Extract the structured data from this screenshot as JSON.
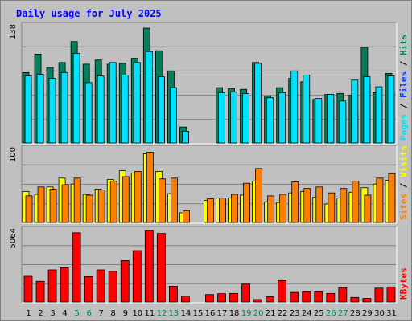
{
  "title": "Daily usage for July 2025",
  "colors": {
    "background": "#c0c0c0",
    "hits": "#00805c",
    "files": "#0040ff",
    "pages": "#00e0ff",
    "visits": "#ffff00",
    "sites": "#ff8000",
    "kbytes": "#ff0000",
    "title": "#0000ff",
    "weekend_label": "#00805c",
    "weekday_label": "#000000"
  },
  "chart_data": [
    {
      "type": "bar",
      "name": "hits-files-pages",
      "categories": [
        "1",
        "2",
        "3",
        "4",
        "5",
        "6",
        "7",
        "8",
        "9",
        "10",
        "11",
        "12",
        "13",
        "14",
        "15",
        "16",
        "17",
        "18",
        "19",
        "20",
        "21",
        "22",
        "23",
        "24",
        "25",
        "26",
        "27",
        "28",
        "29",
        "30",
        "31"
      ],
      "weekend_days": [
        "5",
        "6",
        "12",
        "13",
        "19",
        "20",
        "26",
        "27"
      ],
      "y_max_label": "138",
      "ylim": [
        0,
        138
      ],
      "series": [
        {
          "name": "Hits",
          "values": [
            84,
            106,
            90,
            96,
            121,
            94,
            99,
            94,
            95,
            101,
            137,
            110,
            86,
            19,
            0,
            0,
            66,
            65,
            64,
            96,
            56,
            66,
            77,
            73,
            52,
            58,
            59,
            57,
            114,
            60,
            83
          ]
        },
        {
          "name": "Files",
          "values": [
            72,
            70,
            75,
            84,
            84,
            62,
            74,
            78,
            70,
            82,
            90,
            76,
            62,
            10,
            0,
            0,
            56,
            52,
            48,
            62,
            48,
            46,
            58,
            63,
            50,
            53,
            48,
            38,
            70,
            50,
            62
          ]
        },
        {
          "name": "Pages",
          "values": [
            80,
            82,
            77,
            84,
            107,
            72,
            80,
            96,
            81,
            96,
            109,
            79,
            66,
            14,
            0,
            0,
            60,
            61,
            59,
            95,
            54,
            60,
            86,
            81,
            53,
            58,
            50,
            75,
            79,
            67,
            80
          ]
        }
      ],
      "legend": [
        "Pages",
        "Files",
        "Hits"
      ]
    },
    {
      "type": "bar",
      "name": "visits-sites",
      "categories": [
        "1",
        "2",
        "3",
        "4",
        "5",
        "6",
        "7",
        "8",
        "9",
        "10",
        "11",
        "12",
        "13",
        "14",
        "15",
        "16",
        "17",
        "18",
        "19",
        "20",
        "21",
        "22",
        "23",
        "24",
        "25",
        "26",
        "27",
        "28",
        "29",
        "30",
        "31"
      ],
      "y_max_label": "100",
      "ylim": [
        0,
        100
      ],
      "series": [
        {
          "name": "Visits",
          "values": [
            42,
            38,
            48,
            60,
            52,
            38,
            45,
            58,
            70,
            67,
            93,
            69,
            39,
            13,
            0,
            30,
            33,
            33,
            37,
            56,
            28,
            27,
            40,
            42,
            34,
            25,
            33,
            41,
            47,
            52,
            57
          ]
        },
        {
          "name": "Sites",
          "values": [
            36,
            48,
            45,
            51,
            60,
            37,
            44,
            56,
            62,
            69,
            95,
            59,
            60,
            16,
            0,
            32,
            33,
            38,
            53,
            73,
            36,
            38,
            55,
            46,
            48,
            40,
            46,
            56,
            37,
            60,
            66
          ]
        }
      ],
      "legend": [
        "Sites",
        "Visits"
      ]
    },
    {
      "type": "bar",
      "name": "kbytes",
      "categories": [
        "1",
        "2",
        "3",
        "4",
        "5",
        "6",
        "7",
        "8",
        "9",
        "10",
        "11",
        "12",
        "13",
        "14",
        "15",
        "16",
        "17",
        "18",
        "19",
        "20",
        "21",
        "22",
        "23",
        "24",
        "25",
        "26",
        "27",
        "28",
        "29",
        "30",
        "31"
      ],
      "y_max_label": "5064",
      "ylim": [
        0,
        5064
      ],
      "series": [
        {
          "name": "KBytes",
          "values": [
            1800,
            1450,
            2250,
            2400,
            4850,
            1780,
            2250,
            2150,
            2900,
            3600,
            5000,
            4800,
            1100,
            420,
            0,
            520,
            580,
            600,
            1250,
            170,
            380,
            1500,
            670,
            720,
            700,
            600,
            1000,
            320,
            250,
            970,
            1050
          ]
        }
      ],
      "legend": [
        "KBytes"
      ]
    }
  ]
}
